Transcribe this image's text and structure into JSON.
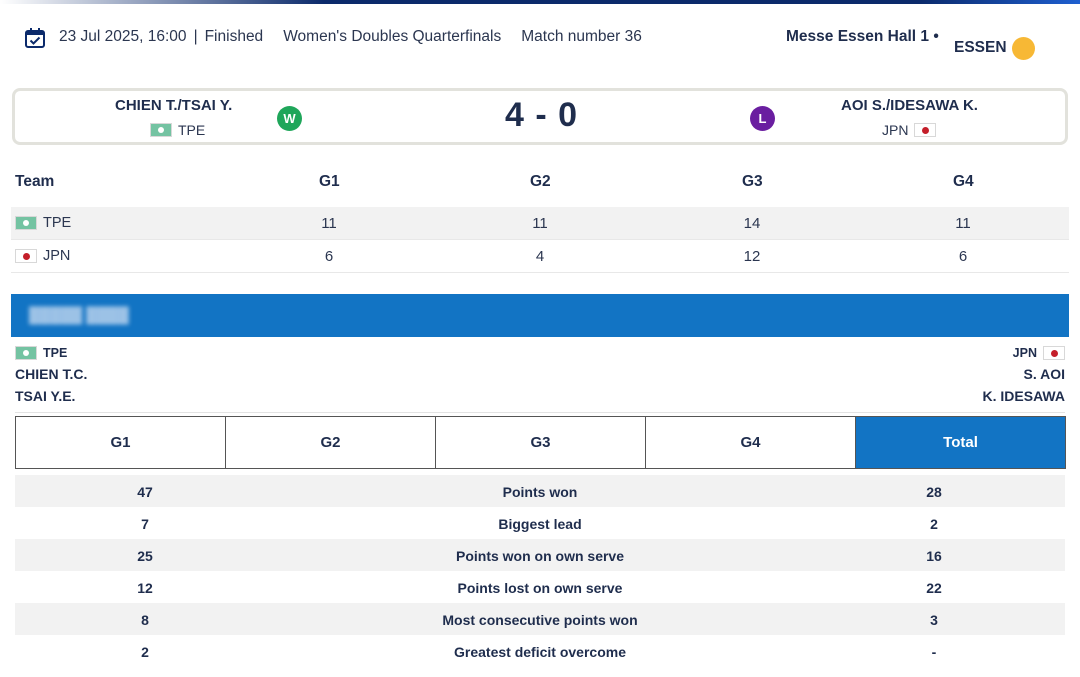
{
  "header": {
    "datetime": "23 Jul 2025, 16:00",
    "separator": "|",
    "status": "Finished",
    "event": "Women's Doubles Quarterfinals",
    "match_number": "Match number 36",
    "venue": "Messe Essen Hall 1 •",
    "city": "ESSEN",
    "icons": {
      "calendar": "calendar-check-icon",
      "weather": "sun-icon"
    },
    "colors": {
      "sun": "#f7b835"
    }
  },
  "score_card": {
    "left_team": {
      "name": "CHIEN T./TSAI Y.",
      "code": "TPE",
      "result_badge": "W"
    },
    "right_team": {
      "name": "AOI S./IDESAWA K.",
      "code": "JPN",
      "result_badge": "L"
    },
    "score": "4 - 0",
    "colors": {
      "win": "#1fa65a",
      "loss": "#6a1ea0"
    }
  },
  "games_table": {
    "headers": [
      "Team",
      "G1",
      "G2",
      "G3",
      "G4"
    ],
    "rows": [
      {
        "team": "TPE",
        "scores": [
          "11",
          "11",
          "14",
          "11"
        ]
      },
      {
        "team": "JPN",
        "scores": [
          "6",
          "4",
          "12",
          "6"
        ]
      }
    ]
  },
  "players": {
    "left": {
      "code": "TPE",
      "names": [
        "CHIEN T.C.",
        "TSAI Y.E."
      ]
    },
    "right": {
      "code": "JPN",
      "names": [
        "S. AOI",
        "K. IDESAWA"
      ]
    }
  },
  "tabs": {
    "items": [
      "G1",
      "G2",
      "G3",
      "G4",
      "Total"
    ],
    "active": "Total",
    "colors": {
      "active": "#1274c4"
    }
  },
  "stats": [
    {
      "left": "47",
      "label": "Points won",
      "right": "28"
    },
    {
      "left": "7",
      "label": "Biggest lead",
      "right": "2"
    },
    {
      "left": "25",
      "label": "Points won on own serve",
      "right": "16"
    },
    {
      "left": "12",
      "label": "Points lost on own serve",
      "right": "22"
    },
    {
      "left": "8",
      "label": "Most consecutive points won",
      "right": "3"
    },
    {
      "left": "2",
      "label": "Greatest deficit overcome",
      "right": "-"
    }
  ]
}
